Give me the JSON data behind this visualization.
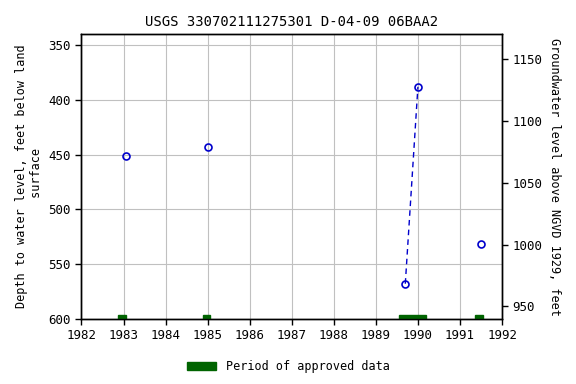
{
  "title": "USGS 330702111275301 D-04-09 06BAA2",
  "ylabel_left": "Depth to water level, feet below land\n surface",
  "ylabel_right": "Groundwater level above NGVD 1929, feet",
  "ylim_left": [
    600,
    340
  ],
  "ylim_right": [
    940,
    1170
  ],
  "xlim": [
    1982,
    1992
  ],
  "xticks": [
    1982,
    1983,
    1984,
    1985,
    1986,
    1987,
    1988,
    1989,
    1990,
    1991,
    1992
  ],
  "yticks_left": [
    350,
    400,
    450,
    500,
    550,
    600
  ],
  "yticks_right": [
    950,
    1000,
    1050,
    1100,
    1150
  ],
  "data_points": [
    {
      "year": 1983.05,
      "depth": 451
    },
    {
      "year": 1985.0,
      "depth": 443
    },
    {
      "year": 1989.7,
      "depth": 568
    },
    {
      "year": 1990.0,
      "depth": 388
    },
    {
      "year": 1991.5,
      "depth": 532
    }
  ],
  "connected_indices": [
    2,
    3
  ],
  "approved_periods": [
    {
      "start": 1982.88,
      "end": 1983.07
    },
    {
      "start": 1984.88,
      "end": 1985.05
    },
    {
      "start": 1989.55,
      "end": 1990.2
    },
    {
      "start": 1991.35,
      "end": 1991.55
    }
  ],
  "point_color": "#0000cc",
  "line_color": "#0000cc",
  "approved_color": "#006400",
  "plot_bg_color": "#ffffff",
  "fig_bg_color": "#ffffff",
  "grid_color": "#c0c0c0",
  "title_fontsize": 10,
  "axis_label_fontsize": 8.5,
  "tick_fontsize": 9
}
